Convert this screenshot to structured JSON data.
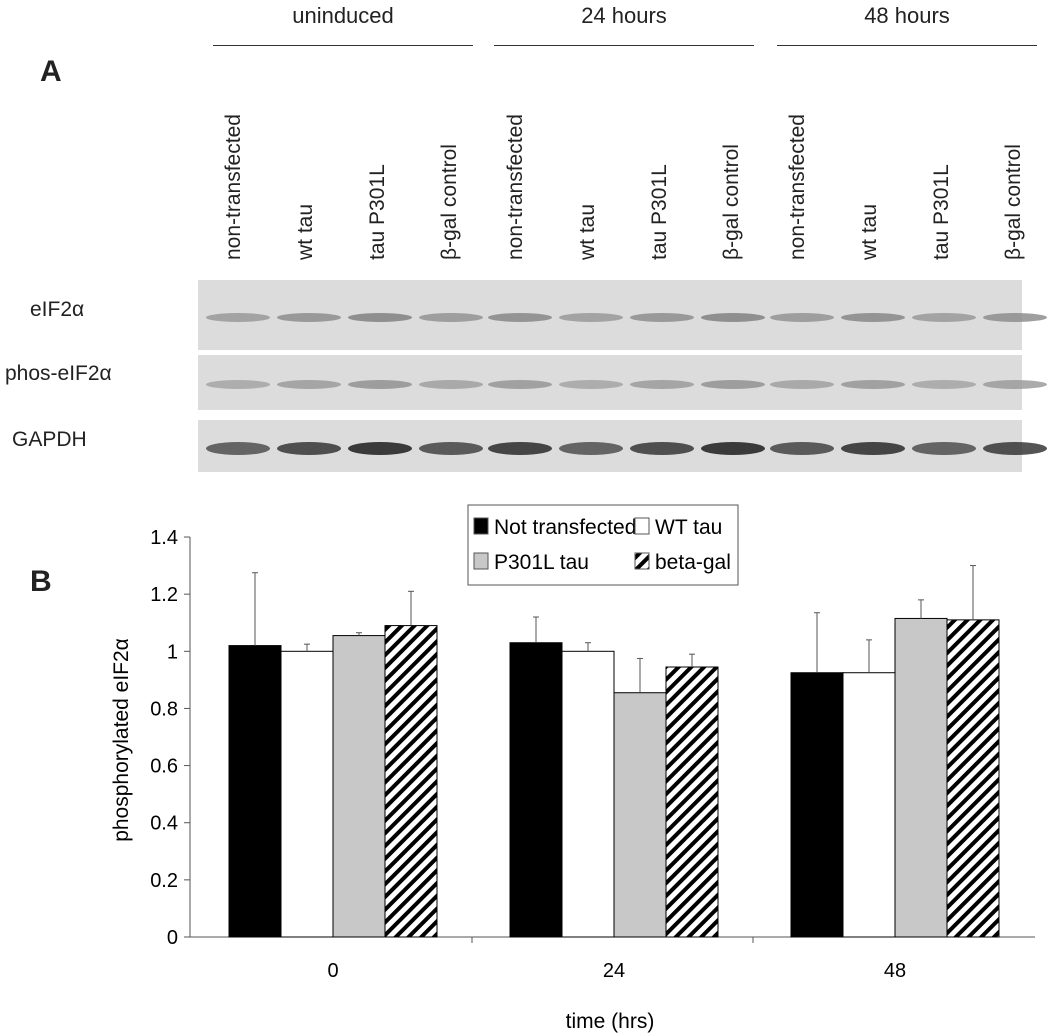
{
  "panel_a": {
    "letter": "A",
    "groups": [
      "uninduced",
      "24 hours",
      "48 hours"
    ],
    "lanes": [
      "non-transfected",
      "wt tau",
      "tau P301L",
      "β-gal control"
    ],
    "rows": [
      "eIF2α",
      "phos-eIF2α",
      "GAPDH"
    ]
  },
  "panel_b": {
    "letter": "B"
  },
  "chart_data": {
    "type": "bar",
    "categories": [
      "0",
      "24",
      "48"
    ],
    "xlabel": "time (hrs)",
    "ylabel": "phosphorylated eIF2α",
    "ylim": [
      0,
      1.4
    ],
    "yticks": [
      "0",
      "0.2",
      "0.4",
      "0.6",
      "0.8",
      "1",
      "1.2",
      "1.4"
    ],
    "grid": false,
    "legend_position": "top-center",
    "series": [
      {
        "name": "Not transfected",
        "fill": "#000000",
        "values": [
          1.02,
          1.03,
          0.925
        ],
        "error": [
          0.255,
          0.09,
          0.21
        ]
      },
      {
        "name": "WT tau",
        "fill": "#ffffff",
        "values": [
          1.0,
          1.0,
          0.925
        ],
        "error": [
          0.025,
          0.03,
          0.115
        ]
      },
      {
        "name": "P301L tau",
        "fill": "#c8c8c8",
        "values": [
          1.055,
          0.855,
          1.115
        ],
        "error": [
          0.01,
          0.12,
          0.065
        ]
      },
      {
        "name": "beta-gal",
        "fill": "hatched",
        "values": [
          1.09,
          0.945,
          1.11
        ],
        "error": [
          0.12,
          0.045,
          0.19
        ]
      }
    ]
  }
}
